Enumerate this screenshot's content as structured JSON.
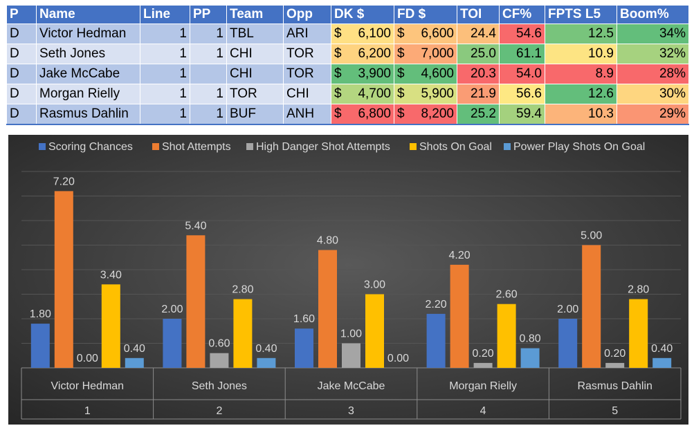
{
  "table": {
    "headers": [
      "P",
      "Name",
      "Line",
      "PP",
      "Team",
      "Opp",
      "DK $",
      "FD $",
      "TOI",
      "CF%",
      "FPTS L5",
      "Boom%"
    ],
    "rows": [
      {
        "p": "D",
        "name": "Victor Hedman",
        "line": "1",
        "pp": "1",
        "team": "TBL",
        "opp": "ARI",
        "dk_cur": "$",
        "dk": "6,100",
        "fd_cur": "$",
        "fd": "6,600",
        "toi": "24.4",
        "cf": "54.6",
        "fpts": "12.5",
        "boom": "34%",
        "colors": {
          "dk": "#ffe084",
          "fd": "#fdc57d",
          "toi": "#fcbf7b",
          "cf": "#f8696b",
          "fpts": "#78c47c",
          "boom": "#63be7b"
        }
      },
      {
        "p": "D",
        "name": "Seth Jones",
        "line": "1",
        "pp": "1",
        "team": "CHI",
        "opp": "TOR",
        "dk_cur": "$",
        "dk": "6,200",
        "fd_cur": "$",
        "fd": "7,000",
        "toi": "25.0",
        "cf": "61.1",
        "fpts": "10.9",
        "boom": "32%",
        "colors": {
          "dk": "#fed380",
          "fd": "#fcaa77",
          "toi": "#8ac97e",
          "cf": "#63be7b",
          "fpts": "#fde483",
          "boom": "#a6d27f"
        }
      },
      {
        "p": "D",
        "name": "Jake McCabe",
        "line": "1",
        "pp": "",
        "team": "CHI",
        "opp": "TOR",
        "dk_cur": "$",
        "dk": "3,900",
        "fd_cur": "$",
        "fd": "4,600",
        "toi": "20.3",
        "cf": "54.0",
        "fpts": "8.9",
        "boom": "28%",
        "colors": {
          "dk": "#63be7b",
          "fd": "#63be7b",
          "toi": "#f8696b",
          "cf": "#f8696b",
          "fpts": "#f8696b",
          "boom": "#f8696b"
        }
      },
      {
        "p": "D",
        "name": "Morgan Rielly",
        "line": "1",
        "pp": "1",
        "team": "TOR",
        "opp": "CHI",
        "dk_cur": "$",
        "dk": "4,700",
        "fd_cur": "$",
        "fd": "5,900",
        "toi": "21.9",
        "cf": "56.6",
        "fpts": "12.6",
        "boom": "30%",
        "colors": {
          "dk": "#b3d680",
          "fd": "#d8e082",
          "toi": "#fa9c74",
          "cf": "#fee883",
          "fpts": "#63be7b",
          "boom": "#fed680"
        }
      },
      {
        "p": "D",
        "name": "Rasmus Dahlin",
        "line": "1",
        "pp": "1",
        "team": "BUF",
        "opp": "ANH",
        "dk_cur": "$",
        "dk": "6,800",
        "fd_cur": "$",
        "fd": "8,200",
        "toi": "25.2",
        "cf": "59.4",
        "fpts": "10.3",
        "boom": "29%",
        "colors": {
          "dk": "#f8696b",
          "fd": "#f8696b",
          "toi": "#63be7b",
          "cf": "#a4d17e",
          "fpts": "#fcb47a",
          "boom": "#fa9573"
        }
      }
    ]
  },
  "chart_data": {
    "type": "bar",
    "categories": [
      "Victor Hedman",
      "Seth Jones",
      "Jake McCabe",
      "Morgan Rielly",
      "Rasmus Dahlin"
    ],
    "category_numbers": [
      "1",
      "2",
      "3",
      "4",
      "5"
    ],
    "series": [
      {
        "name": "Scoring Chances",
        "color": "#4472c4",
        "values": [
          1.8,
          2.0,
          1.6,
          2.2,
          2.0
        ]
      },
      {
        "name": "Shot Attempts",
        "color": "#ed7d31",
        "values": [
          7.2,
          5.4,
          4.8,
          4.2,
          5.0
        ]
      },
      {
        "name": "High Danger Shot Attempts",
        "color": "#a5a5a5",
        "values": [
          0.0,
          0.6,
          1.0,
          0.2,
          0.2
        ]
      },
      {
        "name": "Shots On Goal",
        "color": "#ffc000",
        "values": [
          3.4,
          2.8,
          3.0,
          2.6,
          2.8
        ]
      },
      {
        "name": "Power Play Shots On Goal",
        "color": "#5b9bd5",
        "values": [
          0.4,
          0.4,
          0.0,
          0.8,
          0.4
        ]
      }
    ],
    "ylim": [
      0,
      8
    ],
    "legend": "top",
    "grid": true,
    "background": "#404040"
  }
}
